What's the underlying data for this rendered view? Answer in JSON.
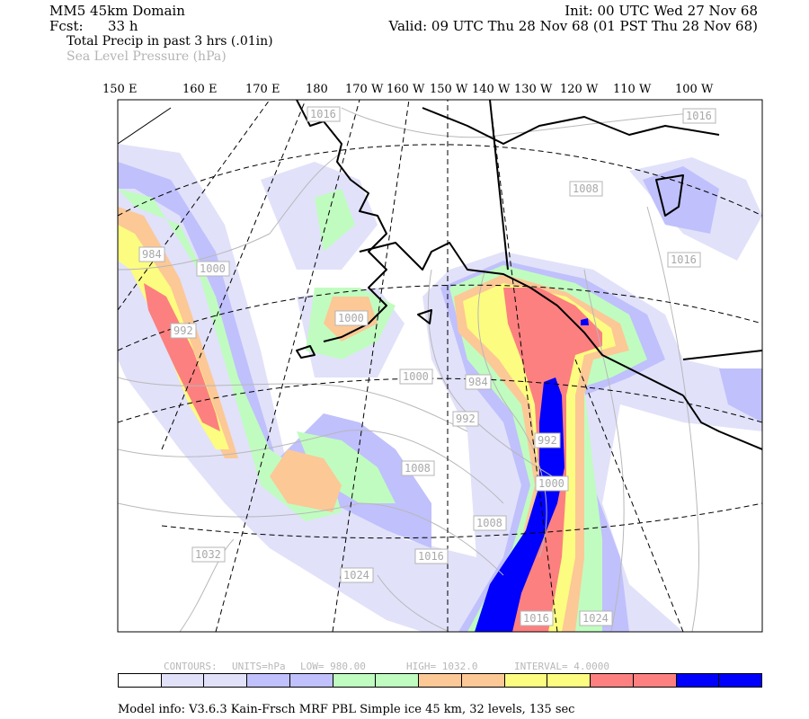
{
  "header": {
    "domain_title": "MM5 45km Domain",
    "init": "Init: 00 UTC Wed 27 Nov 68",
    "fcst_label": "Fcst:",
    "fcst_value": "33 h",
    "valid": "Valid: 09 UTC Thu 28 Nov 68 (01 PST Thu 28 Nov 68)",
    "field_primary": "Total Precip in past 3 hrs (.01in)",
    "field_secondary": "Sea Level Pressure (hPa)"
  },
  "longitude_labels": [
    "150 E",
    "160 E",
    "170 E",
    "180",
    "170 W",
    "160 W",
    "150 W",
    "140 W",
    "130 W",
    "120 W",
    "110 W",
    "100 W"
  ],
  "contour_labels": [
    "1016",
    "1016",
    "1008",
    "1016",
    "984",
    "1000",
    "992",
    "1000",
    "1000",
    "984",
    "992",
    "1008",
    "992",
    "1000",
    "1008",
    "1032",
    "1024",
    "1016",
    "1016",
    "1024"
  ],
  "contour_info": {
    "contours": "CONTOURS:",
    "units": "UNITS=hPa",
    "low": "LOW=   980.00",
    "high": "HIGH=   1032.0",
    "interval": "INTERVAL=    4.0000"
  },
  "legend_colors": [
    "#ffffff",
    "#e1e1fa",
    "#e1e1fa",
    "#c0c0fc",
    "#c0c0fc",
    "#c0fcc0",
    "#c0fcc0",
    "#fcc896",
    "#fcc896",
    "#fcfc80",
    "#fcfc80",
    "#fc8080",
    "#fc8080",
    "#0000fc",
    "#0000fc"
  ],
  "footer": {
    "model_info": "Model info: V3.6.3 Kain-Frsch MRF PBL    Simple ice   45 km,  32 levels,  135 sec"
  }
}
